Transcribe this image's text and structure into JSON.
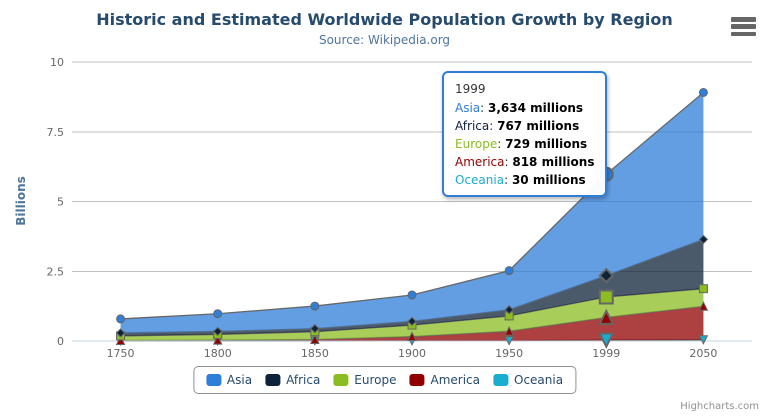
{
  "credits": "Highcharts.com",
  "hovered_category": "1999",
  "colors": {
    "title_text": "#274b6d",
    "subtitle_text": "#4d759e",
    "y_axis_title": "#4d759e",
    "axis_label": "#666666",
    "grid_line": "#c0c0c0",
    "axis_line": "#c0d0e0",
    "series_line": "#666666",
    "legend_text": "#274b6d",
    "legend_border": "#909090",
    "tooltip_border": "#2f7ed8",
    "tooltip_text": "#333333",
    "credits_text": "#909090",
    "burger_icon": "#666666"
  },
  "chart_data": {
    "type": "area",
    "stacking": "normal",
    "title": "Historic and Estimated Worldwide Population Growth by Region",
    "subtitle": "Source: Wikipedia.org",
    "ylabel": "Billions",
    "xlabel": "",
    "units": "millions",
    "ylim": [
      0,
      10
    ],
    "yticks": [
      0,
      2.5,
      5,
      7.5,
      10
    ],
    "grid": true,
    "legend_position": "bottom",
    "categories": [
      "1750",
      "1800",
      "1850",
      "1900",
      "1950",
      "1999",
      "2050"
    ],
    "series": [
      {
        "name": "Asia",
        "color": "#2f7ed8",
        "marker": "circle",
        "values": [
          502,
          635,
          809,
          947,
          1402,
          3634,
          5268
        ]
      },
      {
        "name": "Africa",
        "color": "#0d233a",
        "marker": "diamond",
        "values": [
          106,
          107,
          111,
          133,
          221,
          767,
          1766
        ]
      },
      {
        "name": "Europe",
        "color": "#8bbc21",
        "marker": "square",
        "values": [
          163,
          203,
          276,
          408,
          547,
          729,
          628
        ]
      },
      {
        "name": "America",
        "color": "#910000",
        "marker": "triangle",
        "values": [
          18,
          31,
          54,
          156,
          339,
          818,
          1201
        ]
      },
      {
        "name": "Oceania",
        "color": "#1aadce",
        "marker": "triangle-down",
        "values": [
          2,
          2,
          2,
          6,
          13,
          30,
          46
        ]
      }
    ],
    "stack_bottom_to_top": [
      "Oceania",
      "America",
      "Europe",
      "Africa",
      "Asia"
    ]
  },
  "tooltip": {
    "header": "1999",
    "rows": [
      {
        "name": "Asia",
        "color": "#2f7ed8",
        "value": "3,634 millions"
      },
      {
        "name": "Africa",
        "color": "#0d233a",
        "value": "767 millions"
      },
      {
        "name": "Europe",
        "color": "#8bbc21",
        "value": "729 millions"
      },
      {
        "name": "America",
        "color": "#910000",
        "value": "818 millions"
      },
      {
        "name": "Oceania",
        "color": "#1aadce",
        "value": "30 millions"
      }
    ]
  }
}
